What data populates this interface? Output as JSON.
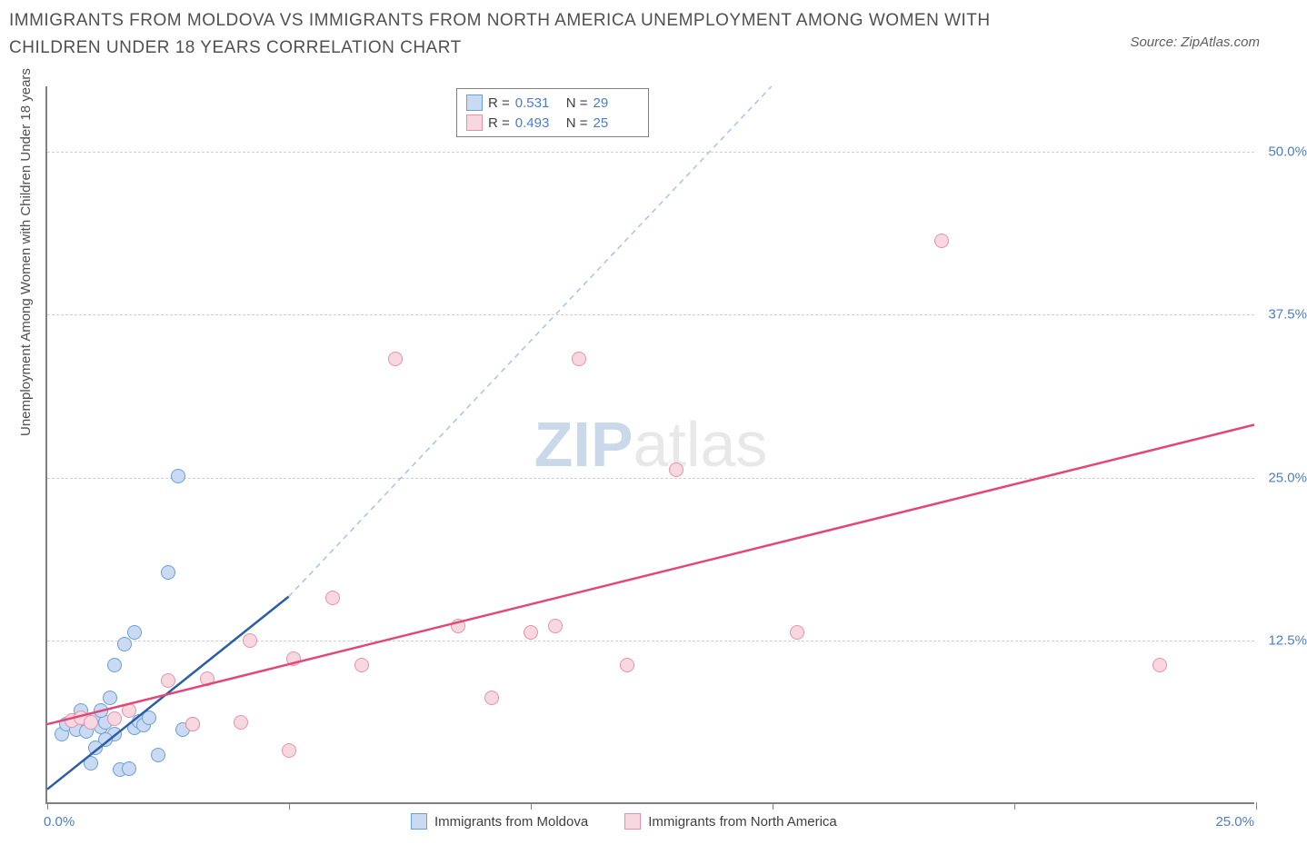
{
  "title": "IMMIGRANTS FROM MOLDOVA VS IMMIGRANTS FROM NORTH AMERICA UNEMPLOYMENT AMONG WOMEN WITH CHILDREN UNDER 18 YEARS CORRELATION CHART",
  "source": "Source: ZipAtlas.com",
  "ylabel": "Unemployment Among Women with Children Under 18 years",
  "watermark_zip": "ZIP",
  "watermark_atlas": "atlas",
  "chart": {
    "type": "scatter",
    "xlim": [
      0,
      25
    ],
    "ylim": [
      0,
      55
    ],
    "xtick_positions": [
      0,
      5,
      10,
      15,
      20,
      25
    ],
    "ytick_positions": [
      12.5,
      25.0,
      37.5,
      50.0
    ],
    "ytick_labels": [
      "12.5%",
      "25.0%",
      "37.5%",
      "50.0%"
    ],
    "xtick_left_label": "0.0%",
    "xtick_right_label": "25.0%",
    "background_color": "#ffffff",
    "grid_color": "#d0d0d0",
    "axis_color": "#808080",
    "tick_label_color": "#4a7ec9",
    "series": [
      {
        "name": "Immigrants from Moldova",
        "fill": "#c9daf2",
        "stroke": "#6a9fd8",
        "line_color": "#2a5fa8",
        "line_dash_color": "#a8c2e8",
        "r_label": "R =",
        "r_value": "0.531",
        "n_label": "N =",
        "n_value": "29",
        "solid_line": {
          "x1": 0,
          "y1": 1.0,
          "x2": 5,
          "y2": 15.8
        },
        "dashed_line": {
          "x1": 5,
          "y1": 15.8,
          "x2": 15,
          "y2": 55
        },
        "points": [
          [
            0.3,
            5.2
          ],
          [
            0.4,
            6.0
          ],
          [
            0.5,
            6.3
          ],
          [
            0.7,
            7.0
          ],
          [
            0.6,
            5.6
          ],
          [
            0.8,
            5.4
          ],
          [
            0.9,
            3.0
          ],
          [
            1.0,
            6.4
          ],
          [
            1.1,
            5.8
          ],
          [
            1.2,
            6.1
          ],
          [
            1.4,
            5.2
          ],
          [
            1.5,
            2.5
          ],
          [
            1.7,
            2.6
          ],
          [
            1.8,
            5.7
          ],
          [
            1.9,
            6.2
          ],
          [
            1.3,
            8.0
          ],
          [
            1.4,
            10.5
          ],
          [
            1.6,
            12.1
          ],
          [
            1.8,
            13.0
          ],
          [
            2.0,
            5.9
          ],
          [
            2.1,
            6.5
          ],
          [
            2.3,
            3.6
          ],
          [
            2.5,
            17.6
          ],
          [
            2.7,
            25.0
          ],
          [
            2.8,
            5.6
          ],
          [
            3.0,
            6.0
          ],
          [
            1.2,
            4.8
          ],
          [
            1.0,
            4.2
          ],
          [
            1.1,
            7.0
          ]
        ]
      },
      {
        "name": "Immigrants from North America",
        "fill": "#f8d8e0",
        "stroke": "#e890aa",
        "line_color": "#e04878",
        "r_label": "R =",
        "r_value": "0.493",
        "n_label": "N =",
        "n_value": "25",
        "solid_line": {
          "x1": 0,
          "y1": 6.0,
          "x2": 25,
          "y2": 29.0
        },
        "points": [
          [
            0.5,
            6.3
          ],
          [
            0.7,
            6.5
          ],
          [
            0.9,
            6.1
          ],
          [
            1.4,
            6.4
          ],
          [
            1.7,
            7.0
          ],
          [
            2.5,
            9.3
          ],
          [
            3.0,
            6.0
          ],
          [
            3.3,
            9.5
          ],
          [
            4.0,
            6.1
          ],
          [
            4.2,
            12.4
          ],
          [
            5.0,
            4.0
          ],
          [
            5.1,
            11.0
          ],
          [
            5.9,
            15.7
          ],
          [
            6.5,
            10.5
          ],
          [
            7.2,
            34.0
          ],
          [
            8.5,
            13.5
          ],
          [
            9.2,
            8.0
          ],
          [
            10.0,
            13.0
          ],
          [
            10.5,
            13.5
          ],
          [
            11.0,
            34.0
          ],
          [
            12.0,
            10.5
          ],
          [
            13.0,
            25.5
          ],
          [
            15.5,
            13.0
          ],
          [
            18.5,
            43.0
          ],
          [
            23.0,
            10.5
          ]
        ]
      }
    ],
    "bottom_legend": [
      {
        "label": "Immigrants from Moldova",
        "fill": "#c9daf2",
        "stroke": "#6a9fd8"
      },
      {
        "label": "Immigrants from North America",
        "fill": "#f8d8e0",
        "stroke": "#e890aa"
      }
    ]
  }
}
